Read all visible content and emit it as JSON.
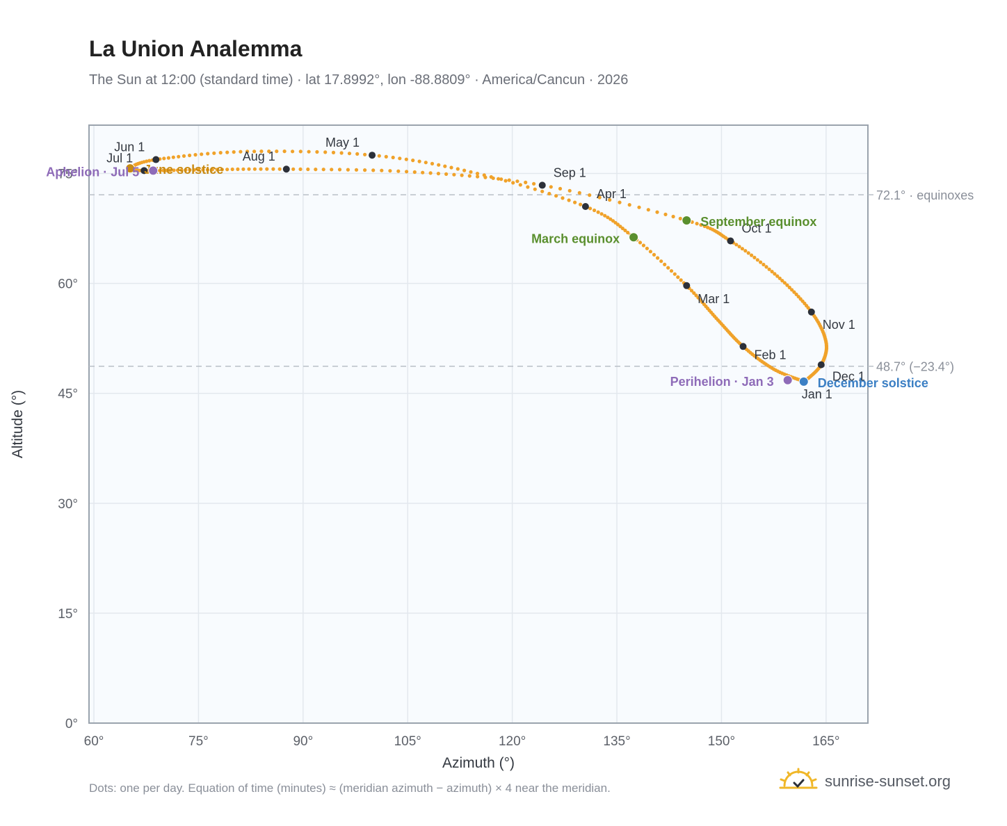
{
  "title": "La Union Analemma",
  "subtitle": "The Sun at 12:00 (standard time) · lat 17.8992°, lon -88.8809° · America/Cancun · 2026",
  "footnote": "Dots: one per day. Equation of time (minutes) ≈ (meridian azimuth − azimuth) × 4 near the meridian.",
  "brand": {
    "name": "sunrise-sunset.org",
    "icon": "sun-logo-icon"
  },
  "colors": {
    "path": "#f0a22a",
    "month_marker": "#2c3039",
    "equinox": "#5a8f2e",
    "december_solstice": "#3b7fc4",
    "june_solstice": "#c98a12",
    "aphelion_perihelion": "#8e6bb8",
    "plot_bg": "#f8fbfe",
    "grid": "#e3e8ee",
    "refline": "#b9bfc7",
    "frame": "#9aa3ad"
  },
  "chart_data": {
    "type": "scatter",
    "xlabel": "Azimuth (°)",
    "ylabel": "Altitude (°)",
    "xlim": [
      59.3,
      171
    ],
    "ylim": [
      0,
      81.6
    ],
    "x_ticks": [
      60,
      75,
      90,
      105,
      120,
      135,
      150,
      165
    ],
    "x_tick_labels": [
      "60°",
      "75°",
      "90°",
      "105°",
      "120°",
      "135°",
      "150°",
      "165°"
    ],
    "y_ticks": [
      0,
      15,
      30,
      45,
      60,
      75
    ],
    "y_tick_labels": [
      "0°",
      "15°",
      "30°",
      "45°",
      "60°",
      "75°"
    ],
    "grid": true,
    "reference_lines": [
      {
        "y": 72.1,
        "label": "72.1° · equinoxes"
      },
      {
        "y": 48.7,
        "label": "48.7° (−23.4°)"
      }
    ],
    "month_markers": [
      {
        "label": "Jan 1",
        "x": 161.9,
        "y": 46.6
      },
      {
        "label": "Feb 1",
        "x": 153.1,
        "y": 51.4
      },
      {
        "label": "Mar 1",
        "x": 145.0,
        "y": 59.7
      },
      {
        "label": "Apr 1",
        "x": 130.5,
        "y": 70.5
      },
      {
        "label": "May 1",
        "x": 99.9,
        "y": 77.5
      },
      {
        "label": "Jun 1",
        "x": 68.9,
        "y": 76.9
      },
      {
        "label": "Jul 1",
        "x": 67.2,
        "y": 75.4
      },
      {
        "label": "Aug 1",
        "x": 87.6,
        "y": 75.6
      },
      {
        "label": "Sep 1",
        "x": 124.3,
        "y": 73.4
      },
      {
        "label": "Oct 1",
        "x": 151.3,
        "y": 65.8
      },
      {
        "label": "Nov 1",
        "x": 162.9,
        "y": 56.1
      },
      {
        "label": "Dec 1",
        "x": 164.3,
        "y": 48.9
      }
    ],
    "events": [
      {
        "label": "March equinox",
        "x": 137.4,
        "y": 66.3
      },
      {
        "label": "June solstice",
        "x": 65.2,
        "y": 75.7
      },
      {
        "label": "September equinox",
        "x": 145.0,
        "y": 68.6
      },
      {
        "label": "December solstice",
        "x": 161.8,
        "y": 46.6
      },
      {
        "label": "Aphelion · Jul 5",
        "x": 68.5,
        "y": 75.4
      },
      {
        "label": "Perihelion · Jan 3",
        "x": 159.5,
        "y": 46.8
      }
    ],
    "path_anchors": [
      {
        "x": 161.9,
        "y": 46.6
      },
      {
        "x": 157.5,
        "y": 48.3
      },
      {
        "x": 153.1,
        "y": 51.4
      },
      {
        "x": 149.5,
        "y": 55.0
      },
      {
        "x": 145.0,
        "y": 59.7
      },
      {
        "x": 137.4,
        "y": 66.3
      },
      {
        "x": 130.5,
        "y": 70.5
      },
      {
        "x": 115.0,
        "y": 75.0
      },
      {
        "x": 99.9,
        "y": 77.5
      },
      {
        "x": 82.0,
        "y": 78.0
      },
      {
        "x": 68.9,
        "y": 76.9
      },
      {
        "x": 65.2,
        "y": 75.7
      },
      {
        "x": 67.2,
        "y": 75.4
      },
      {
        "x": 75.0,
        "y": 75.5
      },
      {
        "x": 87.6,
        "y": 75.6
      },
      {
        "x": 106.0,
        "y": 75.2
      },
      {
        "x": 124.3,
        "y": 73.4
      },
      {
        "x": 145.0,
        "y": 68.6
      },
      {
        "x": 151.3,
        "y": 65.8
      },
      {
        "x": 158.0,
        "y": 61.0
      },
      {
        "x": 162.9,
        "y": 56.1
      },
      {
        "x": 165.0,
        "y": 52.0
      },
      {
        "x": 164.3,
        "y": 48.9
      },
      {
        "x": 161.9,
        "y": 46.6
      }
    ]
  }
}
